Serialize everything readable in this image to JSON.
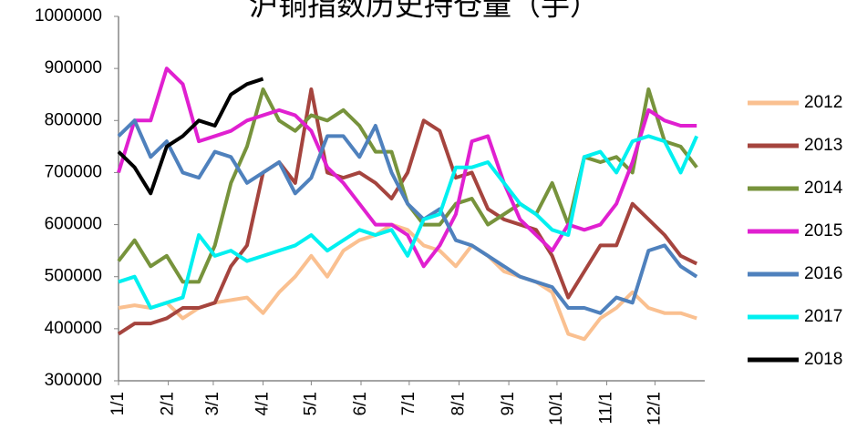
{
  "chart_data": {
    "type": "line",
    "title": "沪铜指数历史持仓量（手）",
    "x": [
      0,
      10,
      20,
      30,
      40,
      50,
      60,
      70,
      80,
      90,
      100,
      110,
      120,
      130,
      140,
      150,
      160,
      170,
      180,
      190,
      200,
      210,
      220,
      230,
      240,
      250,
      260,
      270,
      280,
      290,
      300,
      310,
      320,
      330,
      340,
      350,
      360
    ],
    "xlim": [
      0,
      365
    ],
    "xticks": [
      {
        "value": 0,
        "label": "1/1"
      },
      {
        "value": 31,
        "label": "2/1"
      },
      {
        "value": 59,
        "label": "3/1"
      },
      {
        "value": 90,
        "label": "4/1"
      },
      {
        "value": 120,
        "label": "5/1"
      },
      {
        "value": 151,
        "label": "6/1"
      },
      {
        "value": 181,
        "label": "7/1"
      },
      {
        "value": 212,
        "label": "8/1"
      },
      {
        "value": 243,
        "label": "9/1"
      },
      {
        "value": 273,
        "label": "10/1"
      },
      {
        "value": 304,
        "label": "11/1"
      },
      {
        "value": 334,
        "label": "12/1"
      }
    ],
    "ylim": [
      300000,
      1000000
    ],
    "yticks": [
      300000,
      400000,
      500000,
      600000,
      700000,
      800000,
      900000,
      1000000
    ],
    "legend": "right",
    "series": [
      {
        "name": "2012",
        "color": "#fac090",
        "values": [
          440000,
          445000,
          440000,
          450000,
          420000,
          440000,
          450000,
          455000,
          460000,
          430000,
          470000,
          500000,
          540000,
          500000,
          550000,
          570000,
          580000,
          600000,
          590000,
          560000,
          550000,
          520000,
          560000,
          540000,
          510000,
          500000,
          490000,
          470000,
          390000,
          380000,
          420000,
          440000,
          470000,
          440000,
          430000,
          430000,
          420000
        ]
      },
      {
        "name": "2013",
        "color": "#a5443e",
        "values": [
          390000,
          410000,
          410000,
          420000,
          440000,
          440000,
          450000,
          520000,
          560000,
          700000,
          720000,
          680000,
          860000,
          700000,
          690000,
          700000,
          680000,
          650000,
          700000,
          800000,
          780000,
          690000,
          700000,
          630000,
          610000,
          600000,
          590000,
          540000,
          460000,
          510000,
          560000,
          560000,
          640000,
          610000,
          580000,
          540000,
          525000
        ]
      },
      {
        "name": "2014",
        "color": "#77933c",
        "values": [
          530000,
          570000,
          520000,
          540000,
          490000,
          490000,
          560000,
          680000,
          750000,
          860000,
          800000,
          780000,
          810000,
          800000,
          820000,
          790000,
          740000,
          740000,
          640000,
          600000,
          600000,
          640000,
          650000,
          600000,
          620000,
          640000,
          620000,
          680000,
          600000,
          730000,
          720000,
          730000,
          700000,
          860000,
          760000,
          750000,
          710000
        ]
      },
      {
        "name": "2015",
        "color": "#e020d0",
        "values": [
          700000,
          800000,
          800000,
          900000,
          870000,
          760000,
          770000,
          780000,
          800000,
          810000,
          820000,
          810000,
          780000,
          710000,
          680000,
          640000,
          600000,
          600000,
          580000,
          520000,
          560000,
          620000,
          760000,
          770000,
          680000,
          610000,
          580000,
          550000,
          600000,
          590000,
          600000,
          640000,
          720000,
          820000,
          800000,
          790000,
          790000
        ]
      },
      {
        "name": "2016",
        "color": "#4f81bd",
        "values": [
          770000,
          800000,
          730000,
          760000,
          700000,
          690000,
          740000,
          730000,
          680000,
          700000,
          720000,
          660000,
          690000,
          770000,
          770000,
          730000,
          790000,
          700000,
          640000,
          610000,
          630000,
          570000,
          560000,
          540000,
          520000,
          500000,
          490000,
          480000,
          440000,
          440000,
          430000,
          460000,
          450000,
          550000,
          560000,
          520000,
          500000
        ]
      },
      {
        "name": "2017",
        "color": "#00f0f0",
        "values": [
          490000,
          500000,
          440000,
          450000,
          460000,
          580000,
          540000,
          550000,
          530000,
          540000,
          550000,
          560000,
          580000,
          550000,
          570000,
          590000,
          580000,
          590000,
          540000,
          610000,
          620000,
          710000,
          710000,
          720000,
          680000,
          640000,
          620000,
          590000,
          580000,
          730000,
          740000,
          700000,
          760000,
          770000,
          760000,
          700000,
          770000
        ]
      },
      {
        "name": "2018",
        "color": "#000000",
        "values": [
          740000,
          710000,
          660000,
          750000,
          770000,
          800000,
          790000,
          850000,
          870000,
          880000,
          null,
          null,
          null,
          null,
          null,
          null,
          null,
          null,
          null,
          null,
          null,
          null,
          null,
          null,
          null,
          null,
          null,
          null,
          null,
          null,
          null,
          null,
          null,
          null,
          null,
          null,
          null
        ]
      }
    ]
  }
}
